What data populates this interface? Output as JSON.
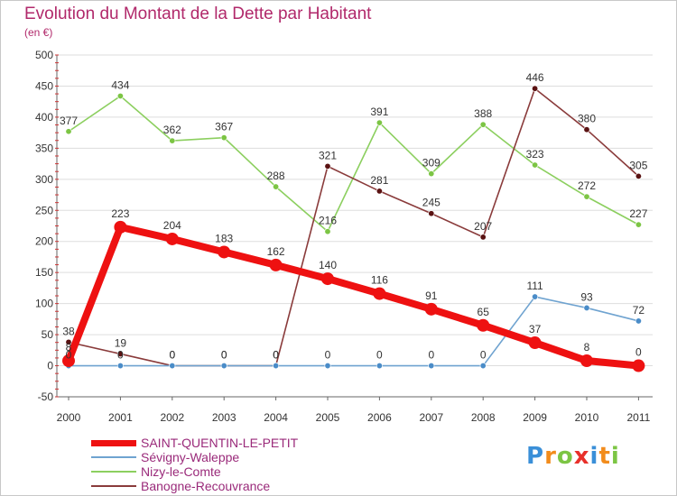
{
  "chart_data": {
    "type": "line",
    "title": "Evolution du Montant de la Dette par Habitant",
    "unit": "(en €)",
    "xlabel": "",
    "ylabel": "",
    "ylim": [
      -50,
      500
    ],
    "y_ticks": [
      -50,
      0,
      50,
      100,
      150,
      200,
      250,
      300,
      350,
      400,
      450,
      500
    ],
    "x": [
      "2000",
      "2001",
      "2002",
      "2003",
      "2004",
      "2005",
      "2006",
      "2007",
      "2008",
      "2009",
      "2010",
      "2011"
    ],
    "grid": "horizontal",
    "series": [
      {
        "name": "Nizy-le-Comte",
        "color": "#8ccf5f",
        "point_color": "#7cc544",
        "values": [
          377,
          434,
          362,
          367,
          288,
          216,
          391,
          309,
          388,
          323,
          272,
          227
        ]
      },
      {
        "name": "Banogne-Recouvrance",
        "color": "#8a3b3b",
        "point_color": "#5a1212",
        "values": [
          38,
          19,
          0,
          0,
          0,
          321,
          281,
          245,
          207,
          446,
          380,
          305
        ]
      },
      {
        "name": "Sévigny-Waleppe",
        "color": "#6fa3d0",
        "point_color": "#4a8cc8",
        "values": [
          0,
          0,
          0,
          0,
          0,
          0,
          0,
          0,
          0,
          111,
          93,
          72
        ]
      },
      {
        "name": "SAINT-QUENTIN-LE-PETIT",
        "color": "#ee1111",
        "point_color": "#ee1111",
        "values": [
          8,
          223,
          204,
          183,
          162,
          140,
          116,
          91,
          65,
          37,
          8,
          0
        ]
      }
    ],
    "legend": [
      {
        "name": "SAINT-QUENTIN-LE-PETIT",
        "color": "#ee1111"
      },
      {
        "name": "Sévigny-Waleppe",
        "color": "#6fa3d0"
      },
      {
        "name": "Nizy-le-Comte",
        "color": "#8ccf5f"
      },
      {
        "name": "Banogne-Recouvrance",
        "color": "#8a3b3b"
      }
    ]
  },
  "logo": {
    "letters": [
      "P",
      "r",
      "o",
      "x",
      "i",
      "t",
      "i"
    ],
    "colors": [
      "#3a8fd8",
      "#f28c1c",
      "#7cc544",
      "#e8302a",
      "#3a8fd8",
      "#f28c1c",
      "#7cc544"
    ]
  }
}
